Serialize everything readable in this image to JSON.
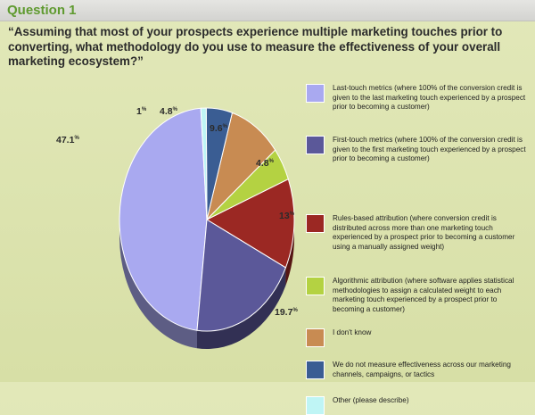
{
  "header": {
    "label": "Question 1"
  },
  "question": {
    "text": "“Assuming that most of your prospects experience multiple marketing touches prior to converting, what methodology do you use to measure the effectiveness of your overall marketing ecosystem?”"
  },
  "chart_data": {
    "type": "pie",
    "title": "",
    "slices": [
      {
        "name": "Last-touch metrics (where 100% of the conversion credit is given to the last marketing touch experienced by a prospect prior to becoming a customer)",
        "value": 47.1,
        "label": "47.1",
        "color": "#a9a9f0"
      },
      {
        "name": "First-touch metrics (where 100% of the conversion credit is given to the first marketing touch experienced by a prospect prior to becoming a customer)",
        "value": 19.7,
        "label": "19.7",
        "color": "#5b5899"
      },
      {
        "name": "Rules-based attribution (where conversion credit is distributed across more than one marketing touch experienced by a prospect prior to becoming a customer using a manually assigned weight)",
        "value": 13,
        "label": "13",
        "color": "#9b2823"
      },
      {
        "name": "Algorithmic attribution (where software applies statistical methodologies to assign a calculated weight to each marketing touch experienced by a prospect prior to becoming a customer)",
        "value": 4.8,
        "label": "4.8",
        "color": "#b4d242"
      },
      {
        "name": "I don't know",
        "value": 9.6,
        "label": "9.6",
        "color": "#c88b52"
      },
      {
        "name": "We do not measure effectiveness across our marketing channels, campaigns, or tactics",
        "value": 4.8,
        "label": "4.8",
        "color": "#3a5d93"
      },
      {
        "name": "Other (please describe)",
        "value": 1,
        "label": "1",
        "color": "#bff5f5"
      }
    ],
    "percent_symbol": "%",
    "legend_position": "right"
  }
}
